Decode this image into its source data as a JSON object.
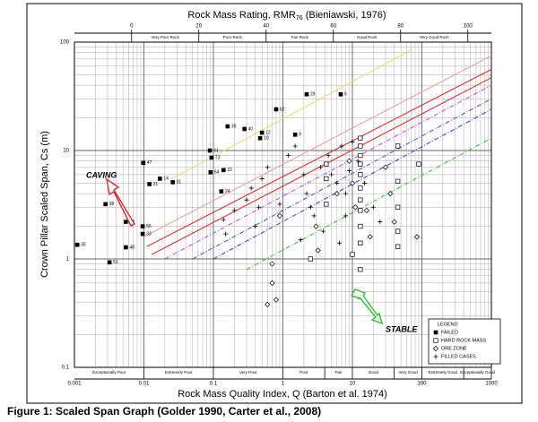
{
  "chart_data": {
    "type": "scatter",
    "top_axis": {
      "title_parts": [
        "Rock Mass Rating, RMR",
        "76",
        " (Bieniawski, 1976)"
      ],
      "xlim": [
        -17,
        107
      ],
      "xticks": [
        0,
        20,
        40,
        60,
        80,
        100
      ],
      "classes": [
        {
          "label": "Very Poor Rock",
          "from": 0,
          "to": 20
        },
        {
          "label": "Poor Rock",
          "from": 20,
          "to": 40
        },
        {
          "label": "Fair Rock",
          "from": 40,
          "to": 60
        },
        {
          "label": "Good Rock",
          "from": 60,
          "to": 80
        },
        {
          "label": "Very Good Rock",
          "from": 80,
          "to": 100
        }
      ]
    },
    "xlabel": "Rock Mass Quality Index, Q (Barton et al. 1974)",
    "ylabel": "Crown Pillar Scaled Span, Cs (m)",
    "xlim": [
      0.001,
      1000
    ],
    "ylim": [
      0.1,
      100
    ],
    "xticks": [
      0.001,
      0.01,
      0.1,
      1,
      10,
      100,
      1000
    ],
    "yticks": [
      0.1,
      1,
      10,
      100
    ],
    "log_x": true,
    "log_y": true,
    "grid": true,
    "q_classes": [
      {
        "label": "Exceptionally Poor",
        "from": 0.001,
        "to": 0.01
      },
      {
        "label": "Extremely Poor",
        "from": 0.01,
        "to": 0.1
      },
      {
        "label": "Very Poor",
        "from": 0.1,
        "to": 1
      },
      {
        "label": "Poor",
        "from": 1,
        "to": 4
      },
      {
        "label": "Fair",
        "from": 4,
        "to": 10
      },
      {
        "label": "Good",
        "from": 10,
        "to": 40
      },
      {
        "label": "Very Good",
        "from": 40,
        "to": 100
      },
      {
        "label": "Extremely Good",
        "from": 100,
        "to": 400
      },
      {
        "label": "Exceptionally Good",
        "from": 400,
        "to": 1000
      }
    ],
    "lines": [
      {
        "color": "#e0e070",
        "dash": "",
        "x": [
          0.024,
          73
        ],
        "y": [
          5.4,
          86
        ]
      },
      {
        "color": "#f0a0a0",
        "dash": "",
        "x": [
          0.01,
          1000
        ],
        "y": [
          1.6,
          75
        ]
      },
      {
        "color": "#e03030",
        "dash": "",
        "x": [
          0.011,
          1000
        ],
        "y": [
          1.3,
          56
        ]
      },
      {
        "color": "#e03030",
        "dash": "",
        "x": [
          0.013,
          1000
        ],
        "y": [
          1.1,
          47
        ]
      },
      {
        "color": "#d050d0",
        "dash": "5,2,1,2",
        "x": [
          0.02,
          1000
        ],
        "y": [
          1.0,
          40
        ]
      },
      {
        "color": "#7050c0",
        "dash": "5,2,1,2",
        "x": [
          0.05,
          1000
        ],
        "y": [
          1.0,
          30
        ]
      },
      {
        "color": "#3050d0",
        "dash": "5,2,1,2",
        "x": [
          0.1,
          1000
        ],
        "y": [
          1.0,
          24
        ]
      },
      {
        "color": "#40c040",
        "dash": "5,2,1,2",
        "x": [
          0.3,
          1000
        ],
        "y": [
          0.8,
          13
        ]
      }
    ],
    "series": [
      {
        "name": "FAILED",
        "marker": "square-filled",
        "color": "#000000",
        "x": [
          0.0011,
          0.0032,
          0.0055,
          0.0055,
          0.0028,
          0.0096,
          0.0096,
          0.0098,
          0.012,
          0.017,
          0.026,
          0.089,
          0.094,
          0.091,
          0.14,
          0.13,
          0.16,
          0.28,
          0.5,
          0.47,
          0.8,
          1.5,
          2.2,
          6.8
        ],
        "y": [
          1.35,
          0.93,
          1.28,
          2.2,
          3.2,
          2.0,
          1.7,
          7.7,
          4.9,
          5.5,
          5.1,
          10,
          8.6,
          6.3,
          6.6,
          4.2,
          16.7,
          15.8,
          14.6,
          13,
          24,
          14,
          33,
          33
        ],
        "labels": [
          "35",
          "51",
          "48",
          "53",
          "38",
          "55",
          "33",
          "47",
          "21",
          "14",
          "31",
          "41",
          "73",
          "64",
          "22",
          "24",
          "39",
          "40",
          "12",
          "10",
          "62",
          "9",
          "29",
          "5"
        ]
      },
      {
        "name": "HARD ROCK MASS",
        "marker": "square-open",
        "color": "#000000",
        "x": [
          13,
          13,
          13,
          13,
          13,
          13,
          13,
          13,
          13,
          13,
          13,
          13,
          4.2,
          4.2,
          4.2,
          45,
          45,
          45,
          45,
          45,
          90,
          2.5,
          10
        ],
        "y": [
          13,
          11,
          9,
          7.5,
          6,
          4.5,
          3.5,
          2.8,
          2,
          1.4,
          0.8,
          0.45,
          7.5,
          5.5,
          3.2,
          11,
          5.2,
          3,
          1.8,
          1.3,
          7.5,
          1.0,
          1.1
        ]
      },
      {
        "name": "ORE ZONE",
        "marker": "diamond-open",
        "color": "#000000",
        "x": [
          0.7,
          0.7,
          0.8,
          0.9,
          3,
          3.2,
          9,
          10,
          11,
          16,
          18,
          30,
          35,
          40,
          85,
          0.6,
          6
        ],
        "y": [
          0.9,
          0.6,
          0.42,
          2.5,
          2,
          1.2,
          8,
          5,
          3,
          2.8,
          1.6,
          7,
          4,
          2.2,
          1.6,
          0.38,
          4
        ]
      },
      {
        "name": "FILLED CASES",
        "marker": "plus",
        "color": "#000000",
        "x": [
          0.14,
          0.2,
          0.3,
          0.35,
          0.4,
          0.5,
          0.6,
          1.2,
          1.5,
          2,
          2.2,
          2.5,
          3.5,
          4.5,
          5,
          6,
          7,
          8,
          8,
          9,
          10,
          12,
          15,
          20,
          25,
          1.8,
          2.8,
          0.9,
          0.15,
          0.45,
          3.8,
          6.5
        ],
        "y": [
          2.3,
          2.8,
          3.5,
          4.5,
          2,
          5.5,
          7,
          9,
          11,
          6,
          4,
          3,
          7,
          9,
          6,
          5,
          11,
          4,
          2.5,
          6.5,
          12,
          8,
          5,
          3,
          2.2,
          1.5,
          2.5,
          3.2,
          1.7,
          3,
          1.8,
          1.4
        ]
      }
    ],
    "legend": {
      "title": "LEGEND",
      "position": "lower right"
    },
    "annotations": [
      {
        "text": "CAVING"
      },
      {
        "text": "STABLE"
      }
    ],
    "caption": "Figure 1: Scaled Span Graph (Golder 1990, Carter et al., 2008)"
  }
}
